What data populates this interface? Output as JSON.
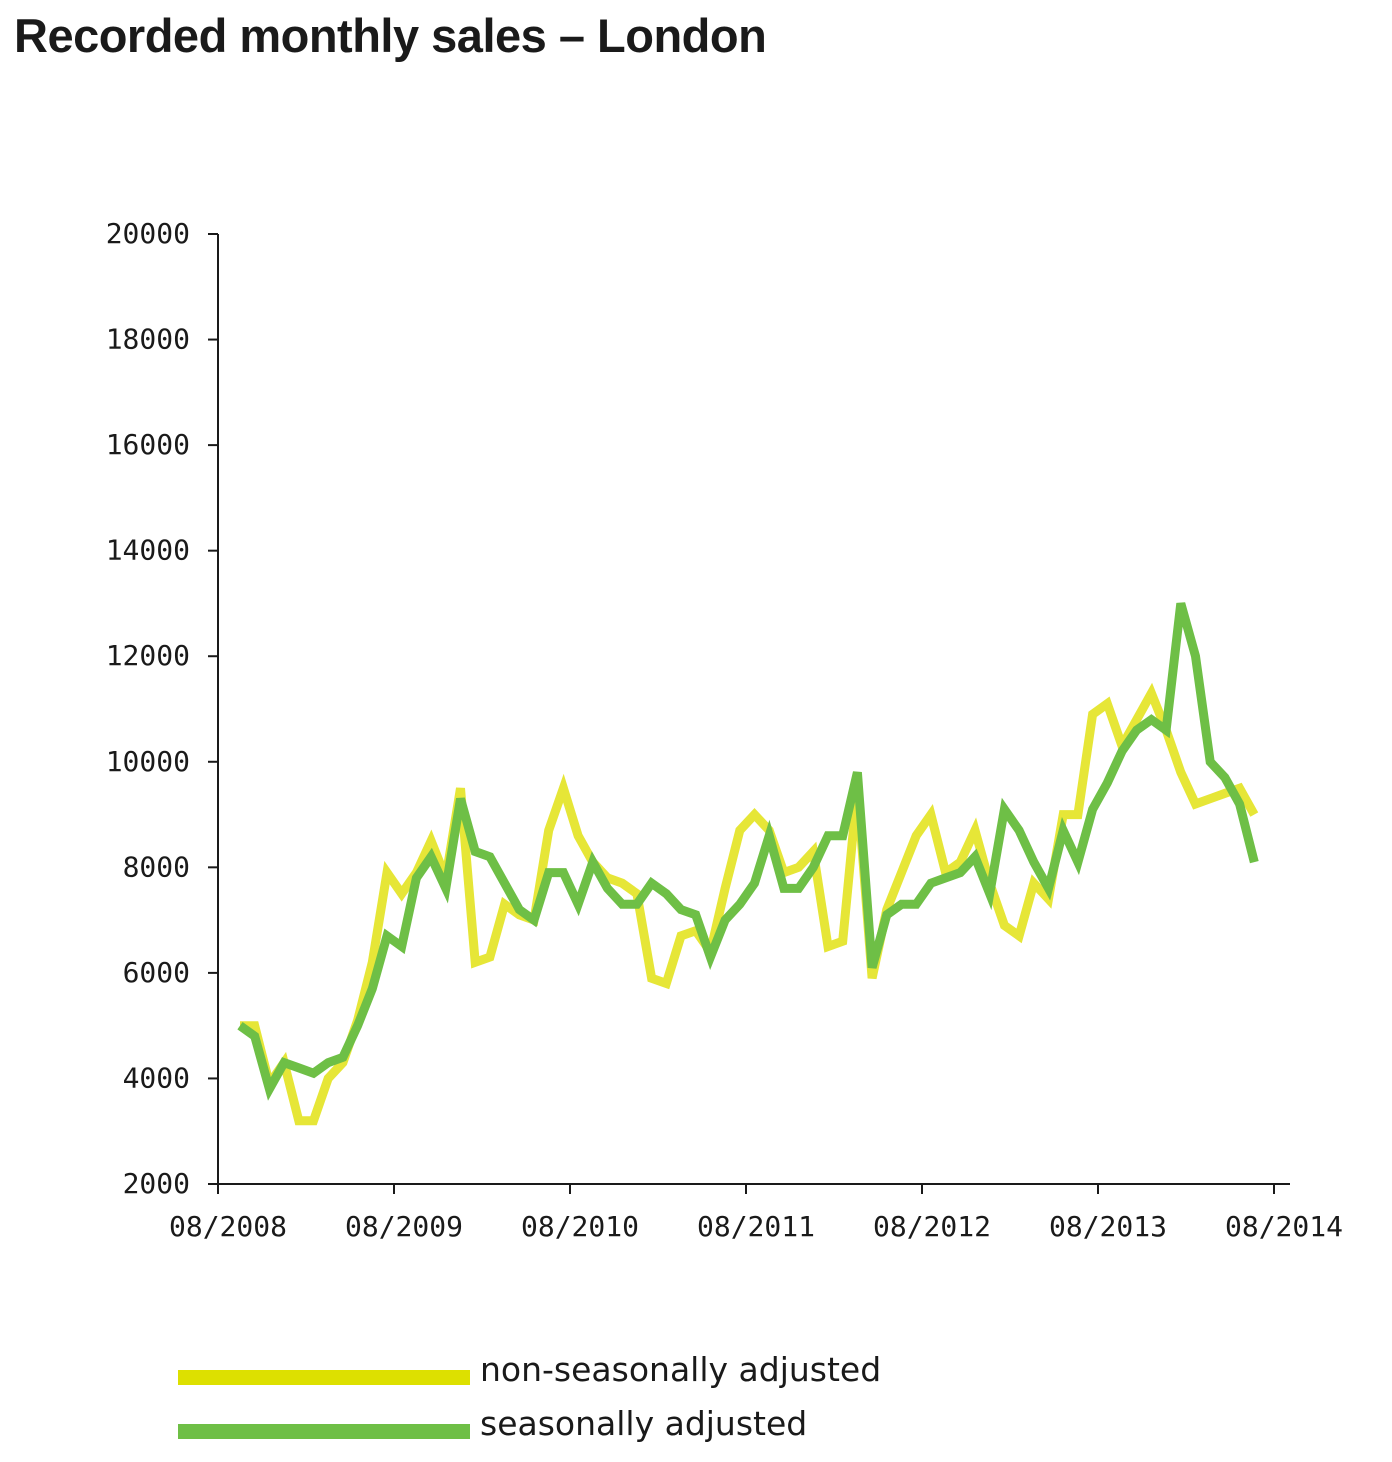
{
  "title": "Recorded monthly sales – London",
  "chart_data": {
    "type": "line",
    "title": "Recorded monthly sales – London",
    "xlabel": "",
    "ylabel": "",
    "ylim": [
      2000,
      20000
    ],
    "yticks": [
      "2000",
      "4000",
      "6000",
      "8000",
      "10000",
      "12000",
      "14000",
      "16000",
      "18000",
      "20000"
    ],
    "xtick_labels": [
      "08/2008",
      "08/2009",
      "08/2010",
      "08/2011",
      "08/2012",
      "08/2013",
      "08/2014"
    ],
    "x_start": "09/2008",
    "x_step": "1 month",
    "grid": false,
    "legend_position": "bottom",
    "series": [
      {
        "name": "non-seasonally adjusted",
        "color": "#e6e637",
        "values": [
          5000,
          5000,
          3900,
          4300,
          3200,
          3200,
          4000,
          4300,
          5100,
          6200,
          7900,
          7500,
          7900,
          8500,
          7800,
          9500,
          6200,
          6300,
          7300,
          7100,
          7000,
          8700,
          9500,
          8600,
          8100,
          7800,
          7700,
          7500,
          5900,
          5800,
          6700,
          6800,
          6400,
          7600,
          8700,
          9000,
          8700,
          7900,
          8000,
          8300,
          6500,
          6600,
          9500,
          5900,
          7200,
          7900,
          8600,
          9000,
          7900,
          8100,
          8700,
          7700,
          6900,
          6700,
          7700,
          7400,
          9000,
          9000,
          10900,
          11100,
          10300,
          10800,
          11300,
          10600,
          9800,
          9200,
          9300,
          9400,
          9500,
          9000
        ]
      },
      {
        "name": "seasonally adjusted",
        "color": "#6ebf46",
        "values": [
          5000,
          4800,
          3800,
          4300,
          4200,
          4100,
          4300,
          4400,
          5000,
          5700,
          6700,
          6500,
          7800,
          8200,
          7600,
          9300,
          8300,
          8200,
          7700,
          7200,
          7000,
          7900,
          7900,
          7300,
          8100,
          7600,
          7300,
          7300,
          7700,
          7500,
          7200,
          7100,
          6300,
          7000,
          7300,
          7700,
          8600,
          7600,
          7600,
          8000,
          8600,
          8600,
          9800,
          6100,
          7100,
          7300,
          7300,
          7700,
          7800,
          7900,
          8200,
          7500,
          9100,
          8700,
          8100,
          7600,
          8700,
          8100,
          9100,
          9600,
          10200,
          10600,
          10800,
          10600,
          13000,
          12000,
          10000,
          9700,
          9200,
          8100
        ]
      }
    ]
  },
  "legend": [
    {
      "label": "non-seasonally adjusted",
      "color": "#dde000"
    },
    {
      "label": "seasonally adjusted",
      "color": "#6ebf46"
    }
  ]
}
